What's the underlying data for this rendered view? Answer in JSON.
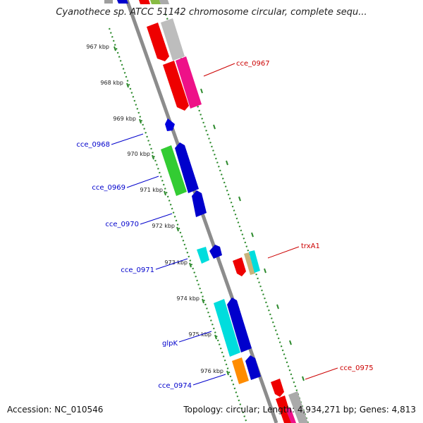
{
  "title": "Cyanothece sp. ATCC 51142 chromosome circular, complete sequ...",
  "accession": "Accession: NC_010546",
  "topology": "Topology: circular; Length: 4,934,271 bp; Genes: 4,813",
  "colors": {
    "backbone": "#8c8c8c",
    "ticks": "#2e8b2e",
    "forward_label": "#cc0000",
    "reverse_label": "#0000cc"
  },
  "kbp_labels": [
    "967 kbp",
    "968 kbp",
    "969 kbp",
    "970 kbp",
    "971 kbp",
    "972 kbp",
    "973 kbp",
    "974 kbp",
    "975 kbp",
    "976 kbp"
  ],
  "gene_labels": {
    "cce_0967": "cce_0967",
    "cce_0968": "cce_0968",
    "cce_0969": "cce_0969",
    "cce_0970": "cce_0970",
    "trxA1": "trxA1",
    "cce_0971": "cce_0971",
    "glpK": "glpK",
    "cce_0975": "cce_0975",
    "cce_0974": "cce_0974"
  }
}
